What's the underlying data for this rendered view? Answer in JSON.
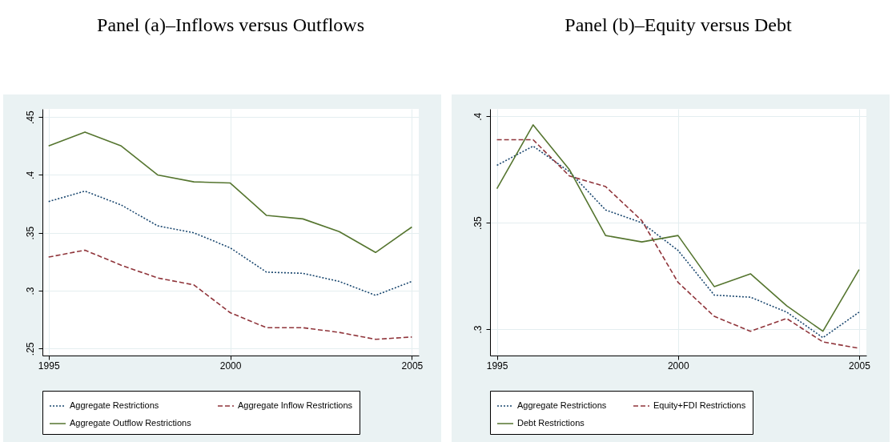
{
  "chart_data": [
    {
      "type": "line",
      "title": "Panel (a)–Inflows versus Outflows",
      "x": [
        1995,
        1996,
        1997,
        1998,
        1999,
        2000,
        2001,
        2002,
        2003,
        2004,
        2005
      ],
      "series": [
        {
          "name": "Aggregate Restrictions",
          "color": "#1a476f",
          "line_style": "dotted",
          "values": [
            0.377,
            0.386,
            0.374,
            0.356,
            0.35,
            0.337,
            0.316,
            0.315,
            0.308,
            0.296,
            0.308
          ]
        },
        {
          "name": "Aggregate Inflow Restrictions",
          "color": "#90353b",
          "line_style": "dashed",
          "values": [
            0.329,
            0.335,
            0.322,
            0.311,
            0.305,
            0.281,
            0.268,
            0.268,
            0.264,
            0.258,
            0.26
          ]
        },
        {
          "name": "Aggregate Outflow Restrictions",
          "color": "#55752f",
          "line_style": "solid",
          "values": [
            0.425,
            0.437,
            0.425,
            0.4,
            0.394,
            0.393,
            0.365,
            0.362,
            0.351,
            0.333,
            0.355
          ]
        }
      ],
      "xlim": [
        1994.83,
        2005.19
      ],
      "xticks": [
        1995,
        2000,
        2005
      ],
      "ylim": [
        0.244,
        0.457
      ],
      "yticks": [
        {
          "value": 0.25,
          "label": ".25"
        },
        {
          "value": 0.3,
          "label": ".3"
        },
        {
          "value": 0.35,
          "label": ".35"
        },
        {
          "value": 0.4,
          "label": ".4"
        },
        {
          "value": 0.45,
          "label": ".45"
        }
      ],
      "grid": true,
      "legend": "bottom"
    },
    {
      "type": "line",
      "title": "Panel (b)–Equity versus Debt",
      "x": [
        1995,
        1996,
        1997,
        1998,
        1999,
        2000,
        2001,
        2002,
        2003,
        2004,
        2005
      ],
      "series": [
        {
          "name": "Aggregate Restrictions",
          "color": "#1a476f",
          "line_style": "dotted",
          "values": [
            0.377,
            0.386,
            0.374,
            0.356,
            0.35,
            0.337,
            0.316,
            0.315,
            0.308,
            0.296,
            0.308
          ]
        },
        {
          "name": "Equity+FDI Restrictions",
          "color": "#90353b",
          "line_style": "dashed",
          "values": [
            0.389,
            0.389,
            0.372,
            0.367,
            0.351,
            0.322,
            0.306,
            0.299,
            0.305,
            0.294,
            0.291
          ]
        },
        {
          "name": "Debt Restrictions",
          "color": "#55752f",
          "line_style": "solid",
          "values": [
            0.366,
            0.396,
            0.375,
            0.344,
            0.341,
            0.344,
            0.32,
            0.326,
            0.311,
            0.299,
            0.328
          ]
        }
      ],
      "xlim": [
        1994.81,
        2005.2
      ],
      "xticks": [
        1995,
        2000,
        2005
      ],
      "ylim": [
        0.2876,
        0.4035
      ],
      "yticks": [
        {
          "value": 0.3,
          "label": ".3"
        },
        {
          "value": 0.35,
          "label": ".35"
        },
        {
          "value": 0.4,
          "label": ".4"
        }
      ],
      "grid": true,
      "legend": "bottom"
    }
  ]
}
